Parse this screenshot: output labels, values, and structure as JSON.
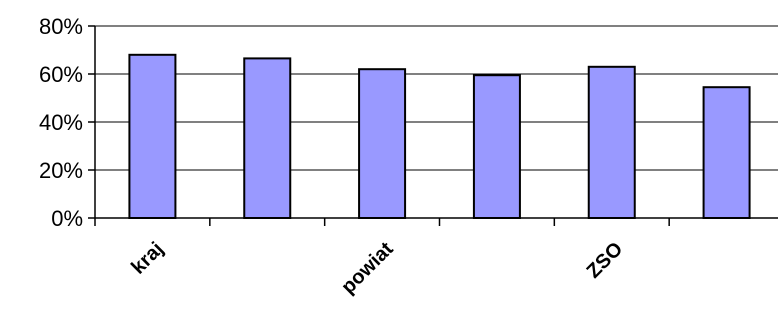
{
  "chart_data": {
    "type": "bar",
    "categories": [
      "kraj",
      "",
      "powiat",
      "",
      "ZSO",
      ""
    ],
    "values": [
      68,
      66.5,
      62,
      59.5,
      63,
      54.5
    ],
    "ylim": [
      0,
      80
    ],
    "yticks": [
      0,
      20,
      40,
      60,
      80
    ],
    "ytick_labels": [
      "0%",
      "20%",
      "40%",
      "60%",
      "80%"
    ],
    "grid": true,
    "legend": "none",
    "colors": {
      "bar": "#9999ff",
      "outline": "#000000"
    }
  }
}
